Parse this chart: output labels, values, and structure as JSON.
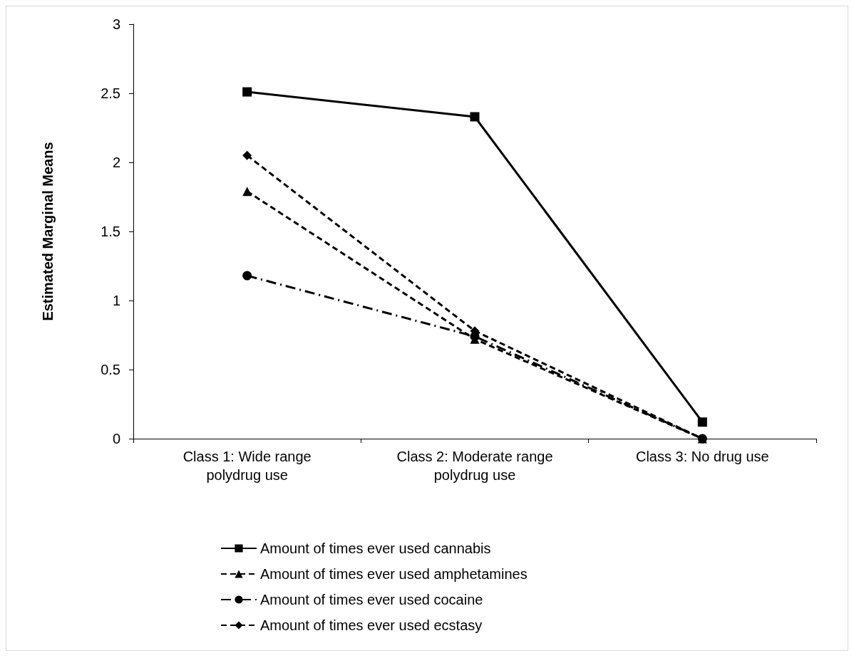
{
  "chart_data": {
    "type": "line",
    "ylabel": "Estimated Marginal Means",
    "categories": [
      "Class 1: Wide range\npolydrug use",
      "Class 2: Moderate range\npolydrug use",
      "Class 3: No drug use"
    ],
    "series": [
      {
        "name": "Amount of times ever used cannabis",
        "color": "#000000",
        "values": [
          2.51,
          2.33,
          0.12
        ],
        "marker": "square",
        "line_style": "solid"
      },
      {
        "name": "Amount of times ever used amphetamines",
        "color": "#000000",
        "values": [
          1.79,
          0.72,
          0
        ],
        "marker": "triangle",
        "line_style": "dashed"
      },
      {
        "name": "Amount of times ever used cocaine",
        "color": "#000000",
        "values": [
          1.18,
          0.74,
          0
        ],
        "marker": "circle",
        "line_style": "dotted"
      },
      {
        "name": "Amount of times ever used ecstasy",
        "color": "#000000",
        "values": [
          2.05,
          0.78,
          0
        ],
        "marker": "diamond",
        "line_style": "dashed"
      }
    ],
    "ylim": [
      0,
      3
    ],
    "yticks": [
      0,
      0.5,
      1,
      1.5,
      2,
      2.5,
      3
    ],
    "grid": false,
    "legend": "bottom"
  }
}
